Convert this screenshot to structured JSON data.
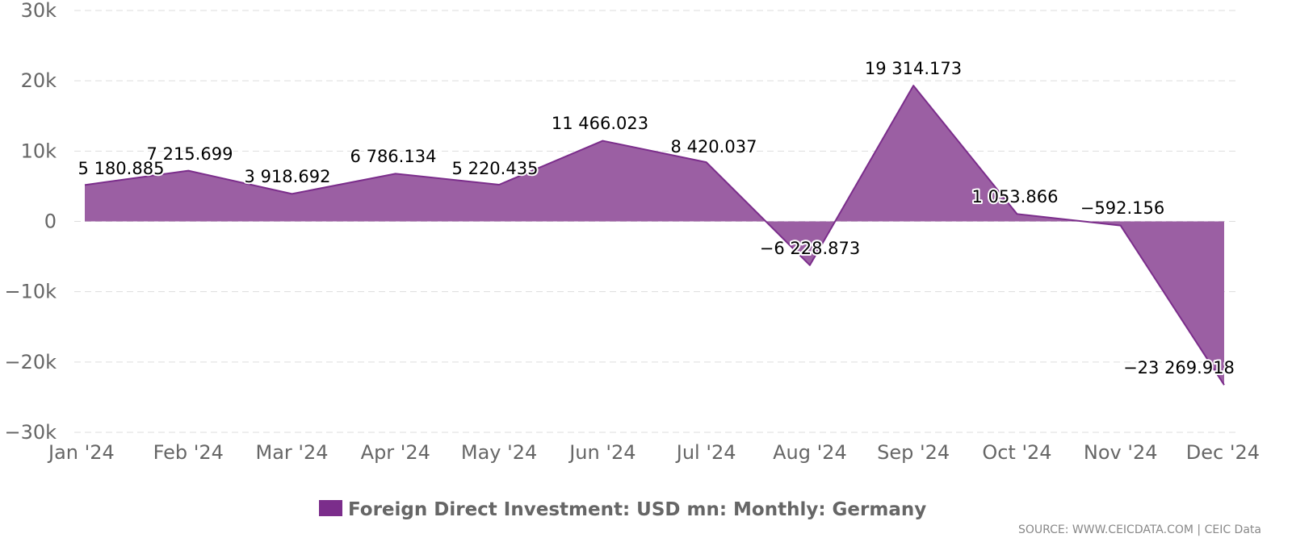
{
  "chart_data": {
    "type": "area",
    "categories": [
      "Jan '24",
      "Feb '24",
      "Mar '24",
      "Apr '24",
      "May '24",
      "Jun '24",
      "Jul '24",
      "Aug '24",
      "Sep '24",
      "Oct '24",
      "Nov '24",
      "Dec '24"
    ],
    "series": [
      {
        "name": "Foreign Direct Investment: USD mn: Monthly: Germany",
        "values": [
          5180.885,
          7215.699,
          3918.692,
          6786.134,
          5220.435,
          11466.023,
          8420.037,
          -6228.873,
          19314.173,
          1053.866,
          -592.156,
          -23269.918
        ],
        "labels": [
          "5 180.885",
          "7 215.699",
          "3 918.692",
          "6 786.134",
          "5 220.435",
          "11 466.023",
          "8 420.037",
          "−6 228.873",
          "19 314.173",
          "1 053.866",
          "−592.156",
          "−23 269.918"
        ],
        "color": "#7B2D8B"
      }
    ],
    "y_ticks": [
      30000,
      20000,
      10000,
      0,
      -10000,
      -20000,
      -30000
    ],
    "y_tick_labels": [
      "30k",
      "20k",
      "10k",
      "0",
      "−10k",
      "−20k",
      "−30k"
    ],
    "ylim": [
      -30000,
      30000
    ],
    "grid": true,
    "legend": "bottom-center",
    "title": "",
    "xlabel": "",
    "ylabel": ""
  },
  "source": "SOURCE: WWW.CEICDATA.COM | CEIC Data",
  "colors": {
    "area_fill": "#9B5FA3",
    "line": "#7B2D8B",
    "grid": "#dddddd",
    "axis_text": "#666666"
  }
}
